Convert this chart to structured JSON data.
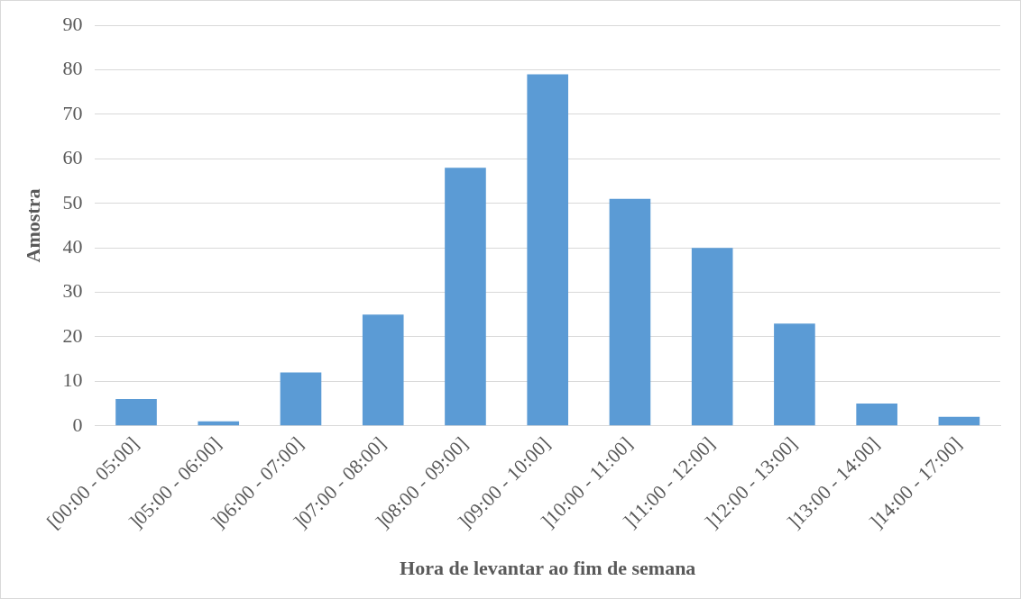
{
  "chart_data": {
    "type": "bar",
    "xlabel": "Hora de levantar ao fim de semana",
    "ylabel": "Amostra",
    "categories": [
      "[00:00 - 05:00]",
      "]05:00 - 06:00]",
      "]06:00 - 07:00]",
      "]07:00 - 08:00]",
      "]08:00 - 09:00]",
      "]09:00 - 10:00]",
      "]10:00 - 11:00]",
      "]11:00 - 12:00]",
      "]12:00 - 13:00]",
      "]13:00 - 14:00]",
      "]14:00 - 17:00]"
    ],
    "values": [
      6,
      1,
      12,
      25,
      58,
      79,
      51,
      40,
      23,
      5,
      2
    ],
    "color": "#5b9bd5",
    "ylim": [
      0,
      90
    ],
    "yticks": [
      0,
      10,
      20,
      30,
      40,
      50,
      60,
      70,
      80,
      90
    ],
    "grid": "y",
    "legend": false
  }
}
